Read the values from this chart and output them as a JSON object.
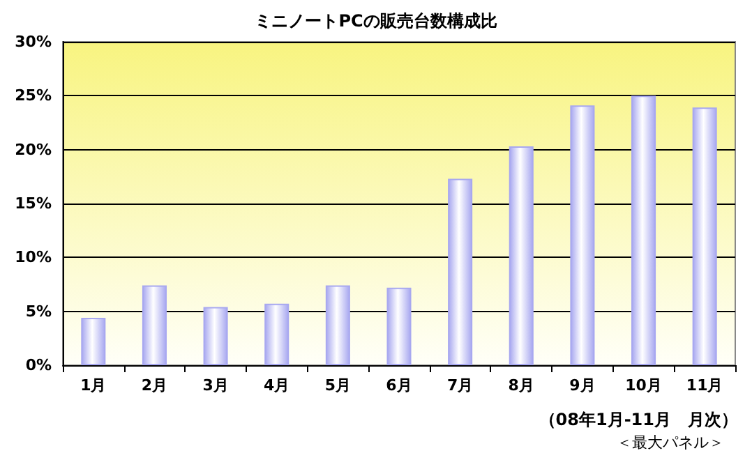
{
  "chart_data": {
    "type": "bar",
    "title": "ミニノートPCの販売台数構成比",
    "categories": [
      "1月",
      "2月",
      "3月",
      "4月",
      "5月",
      "6月",
      "7月",
      "8月",
      "9月",
      "10月",
      "11月"
    ],
    "values": [
      4.4,
      7.4,
      5.4,
      5.7,
      7.4,
      7.2,
      17.3,
      20.3,
      24.1,
      25.0,
      23.9
    ],
    "color": "#a8a8f0",
    "ylim": [
      0,
      30
    ],
    "yticks": [
      {
        "value": 0,
        "label": "0%"
      },
      {
        "value": 5,
        "label": "5%"
      },
      {
        "value": 10,
        "label": "10%"
      },
      {
        "value": 15,
        "label": "15%"
      },
      {
        "value": 20,
        "label": "20%"
      },
      {
        "value": 25,
        "label": "25%"
      },
      {
        "value": 30,
        "label": "30%"
      }
    ],
    "grid": "y",
    "annotations": [
      "（08年1月-11月　月次）",
      "＜最大パネル＞"
    ]
  }
}
